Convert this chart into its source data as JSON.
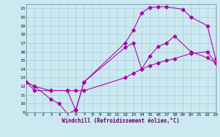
{
  "xlabel": "Windchill (Refroidissement éolien,°C)",
  "xlim": [
    0,
    23
  ],
  "ylim": [
    9,
    21.5
  ],
  "xticks": [
    0,
    1,
    2,
    3,
    4,
    5,
    6,
    7,
    8,
    9,
    10,
    11,
    12,
    13,
    14,
    15,
    16,
    17,
    18,
    19,
    20,
    21,
    22,
    23
  ],
  "yticks": [
    9,
    10,
    11,
    12,
    13,
    14,
    15,
    16,
    17,
    18,
    19,
    20,
    21
  ],
  "bg_color": "#cce8f0",
  "line_color": "#aa00aa",
  "grid_color": "#aaccdd",
  "curve_x": [
    0,
    1,
    3,
    5,
    6,
    7,
    12,
    13,
    14,
    15,
    16,
    17,
    19,
    20,
    22,
    23
  ],
  "curve_y": [
    12.5,
    12.0,
    11.5,
    11.5,
    9.2,
    12.5,
    17.0,
    18.5,
    20.5,
    21.1,
    21.2,
    21.2,
    20.9,
    20.0,
    19.0,
    15.2
  ],
  "line1_x": [
    0,
    1,
    3,
    4,
    5,
    6,
    7,
    12,
    13,
    14,
    15,
    16,
    17,
    18,
    20,
    22,
    23
  ],
  "line1_y": [
    12.5,
    12.0,
    10.5,
    10.0,
    8.8,
    9.3,
    12.5,
    16.5,
    17.0,
    14.0,
    15.5,
    16.6,
    17.0,
    17.8,
    16.0,
    15.3,
    14.7
  ],
  "line2_x": [
    0,
    1,
    3,
    5,
    6,
    7,
    12,
    13,
    14,
    15,
    16,
    17,
    18,
    20,
    22,
    23
  ],
  "line2_y": [
    12.5,
    11.5,
    11.5,
    11.5,
    11.5,
    11.5,
    13.0,
    13.5,
    14.0,
    14.4,
    14.7,
    15.0,
    15.2,
    15.8,
    16.0,
    14.7
  ]
}
